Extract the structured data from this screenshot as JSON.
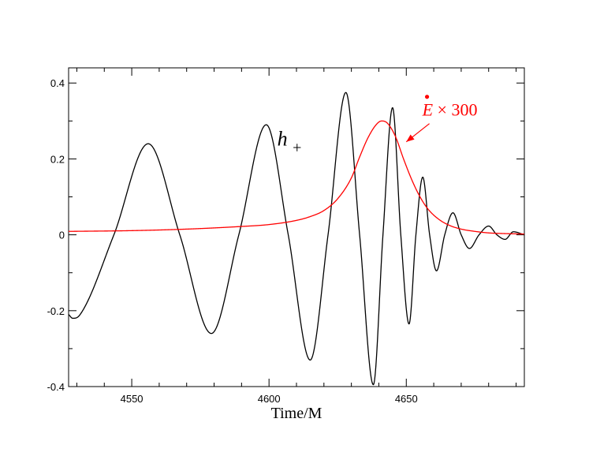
{
  "chart_data": {
    "type": "line",
    "title": "",
    "xlabel": "Time/M",
    "ylabel": "",
    "xlim": [
      4527,
      4693
    ],
    "ylim": [
      -0.4,
      0.44
    ],
    "xticks": [
      4550,
      4600,
      4650
    ],
    "xtick_labels": [
      "4550",
      "4600",
      "4650"
    ],
    "yticks": [
      -0.4,
      -0.2,
      0,
      0.2,
      0.4
    ],
    "ytick_labels": [
      "-0.4",
      "-0.2",
      "0",
      "0.2",
      "0.4"
    ],
    "grid": false,
    "legend": "none",
    "series": [
      {
        "name": "h+",
        "color": "#000000",
        "x": [
          4527,
          4528.5,
          4531,
          4543.5,
          4556,
          4567.5,
          4579,
          4589,
          4599,
          4607,
          4615,
          4621.5,
          4628,
          4633,
          4638,
          4641.5,
          4645,
          4648,
          4651,
          4653.5,
          4656,
          4658.5,
          4661,
          4664,
          4667,
          4670,
          4673,
          4676.5,
          4680,
          4683,
          4686,
          4689,
          4693
        ],
        "values": [
          -0.21,
          -0.22,
          -0.212,
          0,
          0.24,
          0,
          -0.26,
          0,
          0.29,
          0,
          -0.33,
          0,
          0.375,
          0,
          -0.395,
          0,
          0.335,
          0,
          -0.235,
          0,
          0.152,
          0,
          -0.095,
          0,
          0.058,
          0,
          -0.036,
          0,
          0.023,
          0,
          -0.012,
          0.008,
          0
        ]
      },
      {
        "name": "E x 300",
        "color": "#ff0000",
        "x": [
          4527,
          4550,
          4570,
          4590,
          4600,
          4610,
          4615,
          4620,
          4625,
          4630,
          4633,
          4636,
          4639,
          4641,
          4643,
          4646,
          4649,
          4652,
          4655,
          4658,
          4662,
          4666,
          4670,
          4675,
          4680,
          4687,
          4693
        ],
        "values": [
          0.009,
          0.011,
          0.015,
          0.022,
          0.027,
          0.038,
          0.048,
          0.064,
          0.095,
          0.15,
          0.205,
          0.255,
          0.29,
          0.3,
          0.295,
          0.26,
          0.2,
          0.145,
          0.1,
          0.067,
          0.04,
          0.024,
          0.015,
          0.009,
          0.005,
          0.003,
          0.002
        ]
      }
    ],
    "annotations": [
      {
        "label_main": "h",
        "label_sub": "+",
        "x": 4603,
        "y": 0.235,
        "color": "#000000"
      },
      {
        "label_main": "E",
        "label_rest": " × 300",
        "x": 4661,
        "y": 0.32,
        "color": "#ff0000",
        "arrow_to_x": 4650,
        "arrow_to_y": 0.245
      }
    ]
  }
}
